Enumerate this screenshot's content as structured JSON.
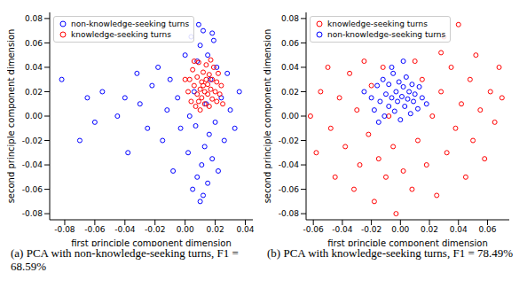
{
  "chart_data": [
    {
      "type": "scatter",
      "caption": "(a) PCA with non-knowledge-seeking turns, F1 = 68.59%",
      "xlabel": "first principle component dimension",
      "ylabel": "second principle component dimension",
      "xlim": [
        -0.09,
        0.045
      ],
      "xticks": [
        -0.08,
        -0.06,
        -0.04,
        -0.02,
        {
          "value": 0,
          "label": "0.00"
        },
        0.02,
        0.04
      ],
      "ylim": [
        -0.085,
        0.085
      ],
      "yticks": [
        -0.08,
        -0.06,
        -0.04,
        -0.02,
        {
          "value": 0,
          "label": "0.00"
        },
        0.02,
        0.04,
        0.06,
        0.08
      ],
      "grid": false,
      "legend": "upper left",
      "series": [
        {
          "name": "non-knowledge-seeking turns",
          "color": "#0000ff",
          "marker": "circle",
          "x": [
            -0.082,
            -0.07,
            -0.065,
            -0.06,
            -0.055,
            -0.045,
            -0.04,
            -0.038,
            -0.032,
            -0.03,
            -0.025,
            -0.022,
            -0.018,
            -0.015,
            -0.012,
            -0.01,
            -0.008,
            -0.005,
            -0.003,
            0.0,
            0.002,
            0.004,
            0.005,
            0.006,
            0.008,
            0.008,
            0.01,
            0.01,
            0.011,
            0.012,
            0.013,
            0.014,
            0.015,
            0.015,
            0.016,
            0.017,
            0.018,
            0.019,
            0.02,
            0.021,
            0.022,
            0.024,
            0.026,
            0.028,
            0.03,
            0.033,
            0.036,
            0.003,
            0.007,
            0.012,
            0.009,
            0.018
          ],
          "y": [
            0.03,
            -0.02,
            0.015,
            -0.005,
            0.02,
            0.0,
            0.015,
            -0.03,
            0.035,
            0.01,
            -0.01,
            0.025,
            0.04,
            -0.02,
            0.005,
            0.03,
            -0.045,
            0.015,
            -0.01,
            0.05,
            -0.03,
            0.065,
            -0.06,
            0.02,
            -0.05,
            0.045,
            -0.07,
            0.058,
            -0.04,
            0.07,
            -0.025,
            0.01,
            -0.055,
            0.05,
            -0.015,
            0.03,
            -0.035,
            0.062,
            -0.005,
            0.04,
            -0.045,
            0.015,
            -0.02,
            0.035,
            0.005,
            -0.01,
            0.02,
            0.0,
            -0.008,
            -0.065,
            0.075,
            0.068
          ]
        },
        {
          "name": "knowledge-seeking turns",
          "color": "#ff0000",
          "marker": "circle",
          "x": [
            0.002,
            0.003,
            0.004,
            0.005,
            0.006,
            0.007,
            0.008,
            0.008,
            0.009,
            0.01,
            0.01,
            0.011,
            0.011,
            0.012,
            0.012,
            0.013,
            0.013,
            0.014,
            0.014,
            0.015,
            0.015,
            0.016,
            0.016,
            0.017,
            0.018,
            0.018,
            0.019,
            0.02,
            0.021,
            0.021,
            0.022,
            0.023,
            0.024,
            0.025,
            0.0,
            0.009,
            0.017,
            0.006
          ],
          "y": [
            0.02,
            0.03,
            0.012,
            0.038,
            0.025,
            0.008,
            0.018,
            0.032,
            0.044,
            0.022,
            0.005,
            0.028,
            0.015,
            0.036,
            0.025,
            0.01,
            0.02,
            0.03,
            0.042,
            0.018,
            0.026,
            0.008,
            0.034,
            0.022,
            0.014,
            0.03,
            0.04,
            0.02,
            0.012,
            0.028,
            0.035,
            0.018,
            0.025,
            0.01,
            0.03,
            0.012,
            0.046,
            0.045
          ]
        }
      ]
    },
    {
      "type": "scatter",
      "caption": "(b) PCA with knowledge-seeking turns, F1 = 78.49%",
      "xlabel": "first principle component dimension",
      "ylabel": "second principle component dimension",
      "xlim": [
        -0.065,
        0.075
      ],
      "xticks": [
        -0.06,
        -0.04,
        -0.02,
        {
          "value": 0,
          "label": "0.00"
        },
        0.02,
        0.04,
        0.06
      ],
      "ylim": [
        -0.085,
        0.085
      ],
      "yticks": [
        -0.08,
        -0.06,
        -0.04,
        -0.02,
        {
          "value": 0,
          "label": "0.00"
        },
        0.02,
        0.04,
        0.06,
        0.08
      ],
      "grid": false,
      "legend": "upper left",
      "series": [
        {
          "name": "knowledge-seeking turns",
          "color": "#ff0000",
          "marker": "circle",
          "x": [
            -0.062,
            -0.058,
            -0.055,
            -0.05,
            -0.048,
            -0.045,
            -0.042,
            -0.038,
            -0.035,
            -0.032,
            -0.03,
            -0.028,
            -0.025,
            -0.022,
            -0.02,
            -0.018,
            -0.015,
            -0.012,
            -0.01,
            -0.008,
            -0.005,
            -0.003,
            0.002,
            0.008,
            0.01,
            0.012,
            0.015,
            0.018,
            0.028,
            0.022,
            0.025,
            0.028,
            0.03,
            0.032,
            0.035,
            0.038,
            0.04,
            0.042,
            0.045,
            0.048,
            0.05,
            0.052,
            0.055,
            0.058,
            0.062,
            0.065,
            0.07,
            0.068
          ],
          "y": [
            0.0,
            -0.03,
            0.02,
            0.04,
            -0.01,
            -0.05,
            0.015,
            -0.025,
            0.035,
            -0.06,
            0.005,
            -0.04,
            0.045,
            -0.015,
            0.025,
            -0.07,
            -0.035,
            0.04,
            -0.05,
            0.0,
            -0.025,
            -0.08,
            -0.045,
            -0.06,
            0.045,
            -0.02,
            0.03,
            -0.04,
            0.052,
            0.0,
            -0.065,
            0.02,
            0.065,
            -0.03,
            0.04,
            -0.01,
            0.075,
            0.01,
            -0.05,
            0.03,
            -0.02,
            0.05,
            0.005,
            -0.035,
            0.02,
            -0.005,
            0.015,
            0.04
          ]
        },
        {
          "name": "non-knowledge-seeking turns",
          "color": "#0000ff",
          "marker": "circle",
          "x": [
            -0.02,
            -0.018,
            -0.016,
            -0.014,
            -0.012,
            -0.011,
            -0.01,
            -0.008,
            -0.008,
            -0.006,
            -0.005,
            -0.004,
            -0.003,
            -0.002,
            -0.001,
            0.0,
            0.001,
            0.002,
            0.003,
            0.004,
            0.005,
            0.006,
            0.007,
            0.008,
            0.009,
            0.01,
            0.012,
            0.013,
            0.015,
            -0.015,
            -0.006,
            0.002,
            -0.025,
            0.018
          ],
          "y": [
            0.015,
            0.005,
            0.025,
            0.012,
            0.03,
            0.0,
            0.018,
            0.008,
            0.026,
            0.015,
            0.035,
            0.004,
            0.02,
            0.012,
            0.028,
            -0.003,
            0.016,
            0.024,
            0.008,
            0.032,
            0.014,
            0.02,
            0.002,
            0.026,
            0.012,
            0.018,
            0.006,
            0.024,
            0.015,
            -0.005,
            0.04,
            0.045,
            0.02,
            0.01
          ]
        }
      ]
    }
  ]
}
